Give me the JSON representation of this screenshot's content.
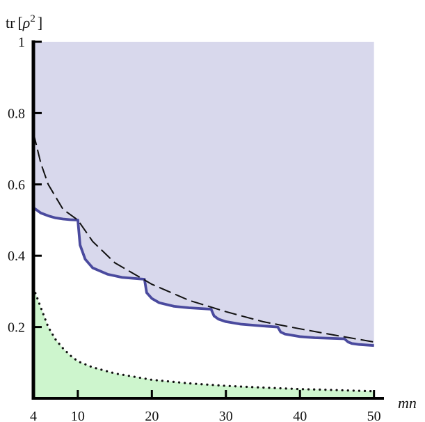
{
  "chart_data": {
    "type": "area",
    "title": "",
    "xlabel": "mn",
    "ylabel_prefix": "tr",
    "ylabel_symbol": "ρ",
    "ylabel_exponent": "2",
    "xlim": [
      4,
      50.5
    ],
    "ylim": [
      0,
      1
    ],
    "x_ticks": [
      4,
      10,
      20,
      30,
      40,
      50
    ],
    "y_ticks": [
      0.2,
      0.4,
      0.6,
      0.8,
      1
    ],
    "y_tick_labels": [
      "0.2",
      "0.4",
      "0.6",
      "0.8",
      "1"
    ],
    "grid": false,
    "legend": "none",
    "colors": {
      "upper_region": "#d8d8ec",
      "lower_region": "#cdf5cd",
      "boundary_curve": "#4a4a9e",
      "dashed_curve": "#111111",
      "dotted_curve": "#111111",
      "axis": "#000000"
    },
    "series": [
      {
        "style": "dashed",
        "x": [
          4,
          5,
          6,
          8,
          10,
          12,
          15,
          20,
          25,
          30,
          35,
          40,
          45,
          50
        ],
        "y": [
          0.745,
          0.66,
          0.6,
          0.53,
          0.5,
          0.44,
          0.38,
          0.32,
          0.275,
          0.243,
          0.215,
          0.195,
          0.176,
          0.158
        ]
      },
      {
        "style": "solid",
        "x": [
          4,
          5,
          6,
          7,
          8,
          9,
          10,
          10,
          10.3,
          11,
          12,
          14,
          16,
          19,
          19,
          19.3,
          20,
          21,
          23,
          25,
          28,
          28,
          28.4,
          29,
          30,
          32,
          35,
          37,
          37,
          37.4,
          38,
          40,
          42,
          46,
          46,
          46.5,
          47,
          48,
          50
        ],
        "y": [
          0.535,
          0.52,
          0.512,
          0.506,
          0.503,
          0.501,
          0.5,
          0.5,
          0.43,
          0.39,
          0.366,
          0.348,
          0.339,
          0.334,
          0.334,
          0.296,
          0.28,
          0.268,
          0.258,
          0.254,
          0.25,
          0.25,
          0.231,
          0.222,
          0.215,
          0.208,
          0.203,
          0.2,
          0.2,
          0.186,
          0.18,
          0.173,
          0.17,
          0.167,
          0.167,
          0.158,
          0.154,
          0.151,
          0.148
        ]
      },
      {
        "style": "dotted",
        "x": [
          4,
          5,
          6,
          7,
          8,
          9,
          10,
          12,
          15,
          20,
          25,
          30,
          35,
          40,
          45,
          50
        ],
        "y": [
          0.31,
          0.255,
          0.2,
          0.165,
          0.14,
          0.12,
          0.104,
          0.087,
          0.07,
          0.052,
          0.042,
          0.035,
          0.03,
          0.026,
          0.023,
          0.02
        ]
      }
    ]
  }
}
